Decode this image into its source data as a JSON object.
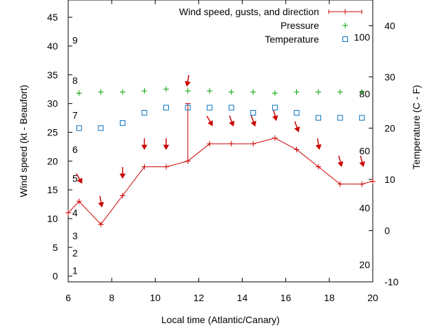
{
  "chart_data": {
    "type": "line",
    "x_label": "Local time (Atlantic/Canary)",
    "y_label": "Wind speed (kt - Beaufort)",
    "y2_label": "Temperature (C - F)",
    "xlim": [
      6,
      20
    ],
    "ylim": [
      -1,
      48
    ],
    "y2lim": [
      -10,
      45
    ],
    "grid": false,
    "legend_position": "top-right",
    "x_ticks": [
      6,
      8,
      10,
      12,
      14,
      16,
      18,
      20
    ],
    "y_ticks": [
      0,
      5,
      10,
      15,
      20,
      25,
      30,
      35,
      40,
      45
    ],
    "y2_ticks": [
      -10,
      0,
      10,
      20,
      30,
      40
    ],
    "beaufort_labels": [
      {
        "label": "1",
        "kt": 1
      },
      {
        "label": "2",
        "kt": 4
      },
      {
        "label": "3",
        "kt": 7
      },
      {
        "label": "4",
        "kt": 11
      },
      {
        "label": "5",
        "kt": 17
      },
      {
        "label": "6",
        "kt": 22
      },
      {
        "label": "7",
        "kt": 28
      },
      {
        "label": "8",
        "kt": 34
      },
      {
        "label": "9",
        "kt": 41
      }
    ],
    "fahrenheit_labels": [
      {
        "label": "20",
        "celsius": -6.67
      },
      {
        "label": "40",
        "celsius": 4.44
      },
      {
        "label": "60",
        "celsius": 15.56
      },
      {
        "label": "80",
        "celsius": 26.67
      },
      {
        "label": "100",
        "celsius": 37.78
      }
    ],
    "legend": [
      {
        "label": "Wind speed, gusts, and direction",
        "color": "#cc0000",
        "symbol": "line-plus"
      },
      {
        "label": "Pressure",
        "color": "#00a000",
        "symbol": "plus"
      },
      {
        "label": "Temperature",
        "color": "#0070c0",
        "symbol": "square"
      }
    ],
    "series": [
      {
        "name": "Wind speed",
        "axis": "y",
        "color": "#cc0000",
        "x": [
          6,
          6.5,
          7.5,
          8.5,
          9.5,
          10.5,
          11.5,
          12.5,
          13.5,
          14.5,
          15.5,
          16.5,
          17.5,
          18.5,
          19.5,
          20
        ],
        "values": [
          11,
          13,
          9,
          14,
          19,
          19,
          20,
          23,
          23,
          23,
          24,
          22,
          19,
          16,
          16,
          16.5
        ]
      },
      {
        "name": "Gust",
        "axis": "y",
        "color": "#cc0000",
        "x": [
          11.5
        ],
        "from": [
          20
        ],
        "values": [
          30
        ]
      },
      {
        "name": "Wind direction",
        "axis": "y",
        "color": "#cc0000",
        "x": [
          6.5,
          7.5,
          8.5,
          9.5,
          10.5,
          11.5,
          12.5,
          13.5,
          14.5,
          15.5,
          16.5,
          17.5,
          18.5,
          19.5
        ],
        "values": [
          17,
          13,
          18,
          23,
          23,
          34,
          27,
          27,
          27,
          28,
          26,
          23,
          20,
          20
        ],
        "direction_deg": [
          330,
          350,
          0,
          0,
          0,
          10,
          330,
          340,
          340,
          345,
          340,
          350,
          345,
          345
        ]
      },
      {
        "name": "Pressure",
        "axis": "y",
        "color": "#00a000",
        "x": [
          6.5,
          7.5,
          8.5,
          9.5,
          10.5,
          11.5,
          12.5,
          13.5,
          14.5,
          15.5,
          16.5,
          17.5,
          18.5,
          19.5
        ],
        "values": [
          31.8,
          32,
          32,
          32.2,
          32.5,
          32.2,
          32.2,
          32,
          32,
          31.8,
          32,
          32,
          32,
          32
        ]
      },
      {
        "name": "Temperature",
        "axis": "y2",
        "color": "#0070c0",
        "x": [
          6.5,
          7.5,
          8.5,
          9.5,
          10.5,
          11.5,
          12.5,
          13.5,
          14.5,
          15.5,
          16.5,
          17.5,
          18.5,
          19.5
        ],
        "values": [
          20,
          20,
          21,
          23,
          24,
          24,
          24,
          24,
          23,
          24,
          23,
          22,
          22,
          22
        ]
      }
    ]
  }
}
